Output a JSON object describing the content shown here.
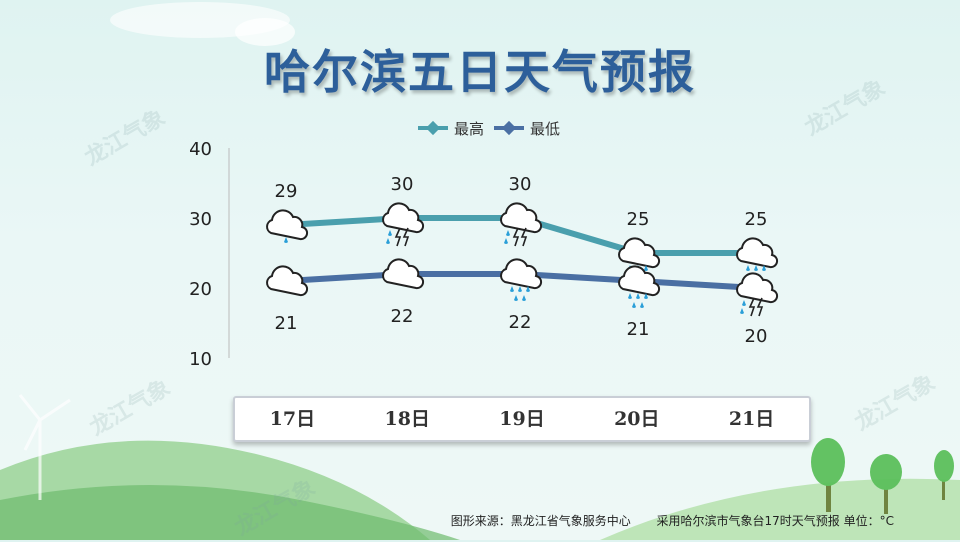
{
  "title": "哈尔滨五日天气预报",
  "watermark": "龙江气象",
  "footer": {
    "source": "图形来源：黑龙江省气象服务中心",
    "note": "采用哈尔滨市气象台17时天气预报 单位：°C"
  },
  "colors": {
    "high": "#4a9fad",
    "low": "#4a6fa3",
    "title": "#2d5f9a"
  },
  "chart_data": {
    "type": "line",
    "categories": [
      "17日",
      "18日",
      "19日",
      "20日",
      "21日"
    ],
    "series": [
      {
        "name": "最高",
        "values": [
          29,
          30,
          30,
          25,
          25
        ],
        "icons": [
          "light-rain-icon",
          "thunderstorm-icon",
          "thunderstorm-icon",
          "rain-icon",
          "rain-icon"
        ]
      },
      {
        "name": "最低",
        "values": [
          21,
          22,
          22,
          21,
          20
        ],
        "icons": [
          "cloudy-icon",
          "cloudy-icon",
          "rain-icon",
          "rain-icon",
          "thunderstorm-icon"
        ]
      }
    ],
    "yticks": [
      10,
      20,
      30,
      40
    ],
    "ylim": [
      10,
      40
    ],
    "legend": "top-center",
    "grid": false
  }
}
